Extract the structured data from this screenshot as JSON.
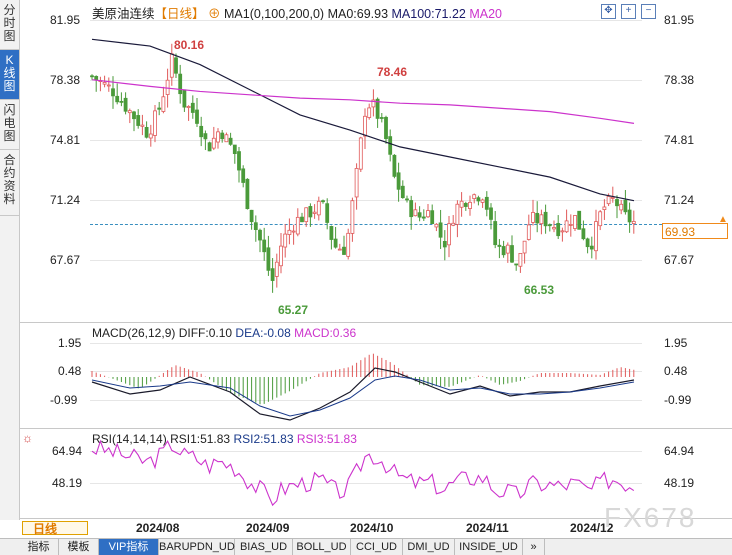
{
  "header": {
    "symbol": "美原油连续",
    "period": "【日线】",
    "ma_title": "MA1(0,100,200,0)",
    "ma0": "MA0:69.93",
    "ma100": "MA100:71.22",
    "ma20": "MA20"
  },
  "left_tabs": [
    {
      "label": "分时图",
      "active": false
    },
    {
      "label": "K线图",
      "active": true
    },
    {
      "label": "闪电图",
      "active": false
    },
    {
      "label": "合约资料",
      "active": false
    }
  ],
  "price_axis": [
    "81.95",
    "78.38",
    "74.81",
    "71.24",
    "67.67"
  ],
  "current_price": "69.93",
  "annotations": {
    "high1": "80.16",
    "high2": "78.46",
    "low1": "65.27",
    "low2": "66.53"
  },
  "macd": {
    "title": "MACD(26,12,9)",
    "diff": "DIFF:0.10",
    "dea": "DEA:-0.08",
    "macd": "MACD:0.36",
    "axis": [
      "1.95",
      "0.48",
      "-0.99"
    ]
  },
  "rsi": {
    "title": "RSI(14,14,14)",
    "rsi1": "RSI1:51.83",
    "rsi2": "RSI2:51.83",
    "rsi3": "RSI3:51.83",
    "axis": [
      "64.94",
      "48.19"
    ]
  },
  "period_button": "日线",
  "date_labels": [
    "2024/08",
    "2024/09",
    "2024/10",
    "2024/11",
    "2024/12"
  ],
  "watermark": "FX678",
  "bottom_tabs": [
    {
      "label": "指标",
      "active": false
    },
    {
      "label": "模板",
      "active": false
    },
    {
      "label": "VIP指标",
      "active": true
    },
    {
      "label": "BARUPDN_UD",
      "active": false
    },
    {
      "label": "BIAS_UD",
      "active": false
    },
    {
      "label": "BOLL_UD",
      "active": false
    },
    {
      "label": "CCI_UD",
      "active": false
    },
    {
      "label": "DMI_UD",
      "active": false
    },
    {
      "label": "INSIDE_UD",
      "active": false
    },
    {
      "label": "»",
      "active": false
    }
  ],
  "colors": {
    "up": "#e05a5a",
    "down": "#4a9a3a",
    "ma100": "#1a1a3a",
    "ma20": "#cc33cc",
    "accent": "#2f6fc4",
    "price_tag": "#f08a1a"
  }
}
